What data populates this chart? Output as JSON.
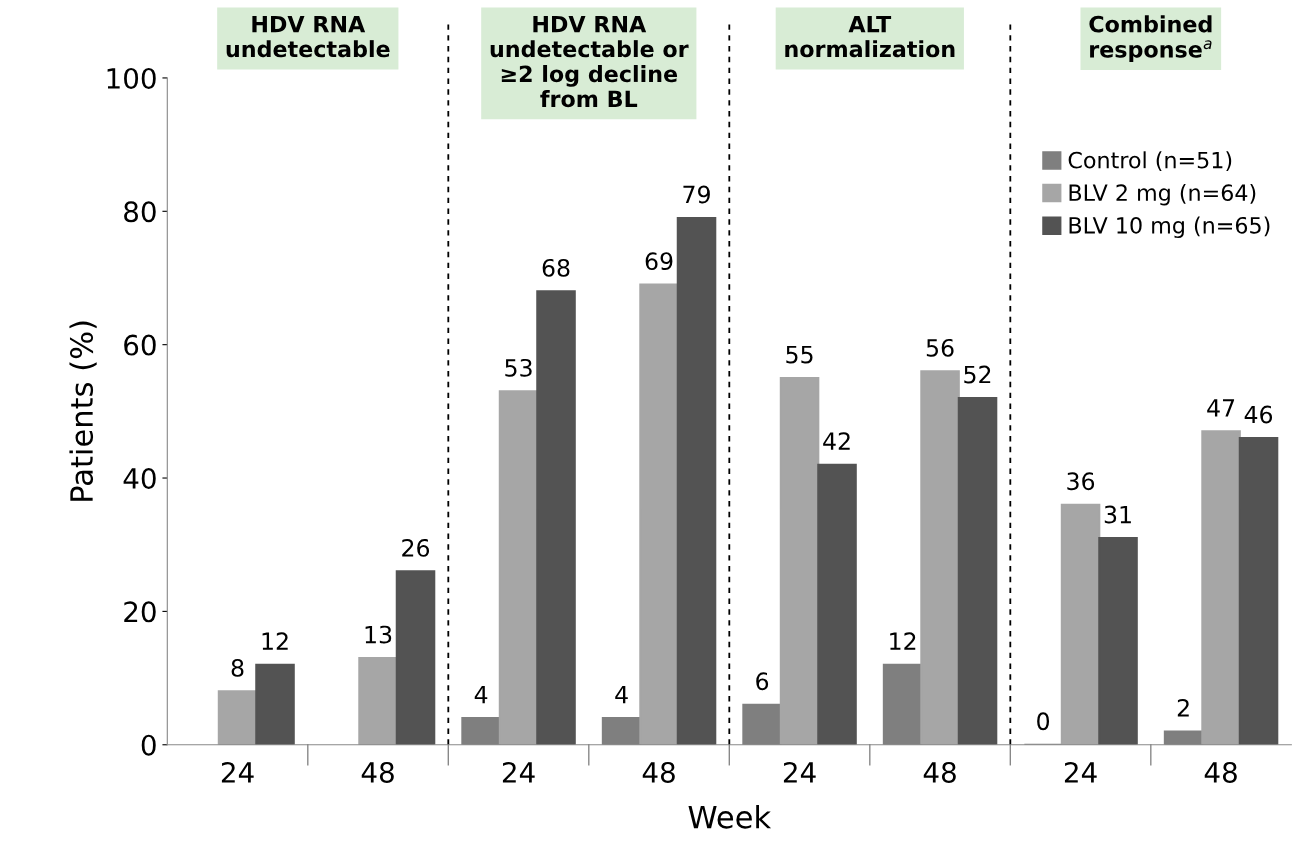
{
  "chart_data": {
    "type": "bar",
    "ylabel": "Patients (%)",
    "xlabel": "Week",
    "categories": [
      "24",
      "48",
      "24",
      "48",
      "24",
      "48",
      "24",
      "48"
    ],
    "series": [
      {
        "name": "Control (n=51)",
        "color": "#7f7f7f",
        "values": [
          null,
          null,
          4,
          4,
          6,
          12,
          0,
          2
        ]
      },
      {
        "name": "BLV 2 mg (n=64)",
        "color": "#a6a6a6",
        "values": [
          8,
          13,
          53,
          69,
          55,
          56,
          36,
          47
        ]
      },
      {
        "name": "BLV 10 mg (n=65)",
        "color": "#535353",
        "values": [
          12,
          26,
          68,
          79,
          42,
          52,
          31,
          46
        ]
      }
    ],
    "ylim": [
      0,
      100
    ],
    "yticks": [
      0,
      20,
      40,
      60,
      80,
      100
    ],
    "data_labels": true,
    "legend": "top right",
    "grid": false,
    "annotations": [
      "HDV RNA\nundetectable",
      "HDV RNA\nundetectable or\n≥2 log decline\nfrom BL",
      "ALT\nnormalization",
      "Combined\nresponse$^{a}$"
    ]
  }
}
